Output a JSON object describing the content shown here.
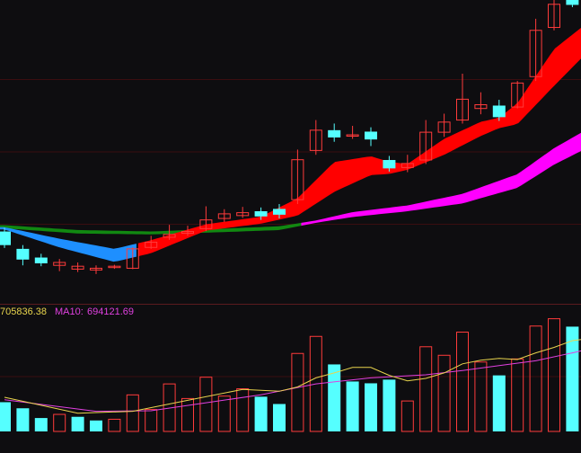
{
  "colors": {
    "background": "#0e0d10",
    "grid": "#3a0d10",
    "separator": "#5a1a1e",
    "up": "#ff3b3b",
    "down": "#55ffff",
    "ribbon_fast_up": "#ff0000",
    "ribbon_fast_down": "#1e8fff",
    "ribbon_slow_up": "#ff00ff",
    "ribbon_slow_down": "#118811",
    "ma5": "#e8d44d",
    "ma10": "#e040e0"
  },
  "volume_legend": {
    "ma5_text": "705836.38",
    "ma10_label": "MA10:",
    "ma10_value": "694121.69"
  },
  "chart_data": {
    "type": "candlestick",
    "title": "",
    "price_ylim": [
      0.0,
      1.0
    ],
    "volume_ylim": [
      0,
      1800000
    ],
    "candles": [
      {
        "o": 0.225,
        "c": 0.178,
        "h": 0.238,
        "l": 0.168
      },
      {
        "o": 0.165,
        "c": 0.128,
        "h": 0.178,
        "l": 0.108
      },
      {
        "o": 0.135,
        "c": 0.115,
        "h": 0.148,
        "l": 0.105
      },
      {
        "o": 0.108,
        "c": 0.118,
        "h": 0.13,
        "l": 0.088
      },
      {
        "o": 0.095,
        "c": 0.105,
        "h": 0.118,
        "l": 0.085
      },
      {
        "o": 0.092,
        "c": 0.098,
        "h": 0.108,
        "l": 0.078
      },
      {
        "o": 0.101,
        "c": 0.105,
        "h": 0.11,
        "l": 0.096
      },
      {
        "o": 0.098,
        "c": 0.165,
        "h": 0.17,
        "l": 0.095
      },
      {
        "o": 0.17,
        "c": 0.188,
        "h": 0.21,
        "l": 0.165
      },
      {
        "o": 0.205,
        "c": 0.215,
        "h": 0.248,
        "l": 0.196
      },
      {
        "o": 0.219,
        "c": 0.225,
        "h": 0.245,
        "l": 0.21
      },
      {
        "o": 0.235,
        "c": 0.265,
        "h": 0.312,
        "l": 0.226
      },
      {
        "o": 0.27,
        "c": 0.286,
        "h": 0.302,
        "l": 0.258
      },
      {
        "o": 0.28,
        "c": 0.29,
        "h": 0.31,
        "l": 0.272
      },
      {
        "o": 0.295,
        "c": 0.277,
        "h": 0.308,
        "l": 0.265
      },
      {
        "o": 0.303,
        "c": 0.283,
        "h": 0.32,
        "l": 0.27
      },
      {
        "o": 0.335,
        "c": 0.473,
        "h": 0.508,
        "l": 0.32
      },
      {
        "o": 0.505,
        "c": 0.575,
        "h": 0.61,
        "l": 0.49
      },
      {
        "o": 0.575,
        "c": 0.55,
        "h": 0.598,
        "l": 0.535
      },
      {
        "o": 0.555,
        "c": 0.559,
        "h": 0.59,
        "l": 0.545
      },
      {
        "o": 0.57,
        "c": 0.543,
        "h": 0.585,
        "l": 0.52
      },
      {
        "o": 0.472,
        "c": 0.443,
        "h": 0.486,
        "l": 0.432
      },
      {
        "o": 0.446,
        "c": 0.46,
        "h": 0.49,
        "l": 0.43
      },
      {
        "o": 0.472,
        "c": 0.568,
        "h": 0.61,
        "l": 0.458
      },
      {
        "o": 0.568,
        "c": 0.603,
        "h": 0.632,
        "l": 0.552
      },
      {
        "o": 0.61,
        "c": 0.682,
        "h": 0.77,
        "l": 0.598
      },
      {
        "o": 0.65,
        "c": 0.663,
        "h": 0.706,
        "l": 0.63
      },
      {
        "o": 0.66,
        "c": 0.62,
        "h": 0.68,
        "l": 0.607
      },
      {
        "o": 0.655,
        "c": 0.738,
        "h": 0.745,
        "l": 0.65
      },
      {
        "o": 0.76,
        "c": 0.92,
        "h": 0.96,
        "l": 0.745
      },
      {
        "o": 0.93,
        "c": 1.01,
        "h": 1.06,
        "l": 0.92
      },
      {
        "o": 1.03,
        "c": 1.008,
        "h": 1.06,
        "l": 1.0
      },
      {
        "o": 1.0,
        "c": 0.955,
        "h": 1.04,
        "l": 0.945
      }
    ],
    "ribbon_fast": [
      {
        "t": 0,
        "a": 0.24,
        "b": 0.232
      },
      {
        "t": 3,
        "a": 0.2,
        "b": 0.17
      },
      {
        "t": 6,
        "a": 0.165,
        "b": 0.12
      },
      {
        "t": 8,
        "a": 0.195,
        "b": 0.15
      },
      {
        "t": 11,
        "a": 0.25,
        "b": 0.228
      },
      {
        "t": 14,
        "a": 0.276,
        "b": 0.252
      },
      {
        "t": 16,
        "a": 0.34,
        "b": 0.28
      },
      {
        "t": 18,
        "a": 0.465,
        "b": 0.362
      },
      {
        "t": 20,
        "a": 0.485,
        "b": 0.42
      },
      {
        "t": 21,
        "a": 0.466,
        "b": 0.424
      },
      {
        "t": 22,
        "a": 0.458,
        "b": 0.438
      },
      {
        "t": 24,
        "a": 0.545,
        "b": 0.49
      },
      {
        "t": 26,
        "a": 0.604,
        "b": 0.555
      },
      {
        "t": 27,
        "a": 0.618,
        "b": 0.582
      },
      {
        "t": 28,
        "a": 0.668,
        "b": 0.596
      },
      {
        "t": 30,
        "a": 0.855,
        "b": 0.728
      },
      {
        "t": 32,
        "a": 0.955,
        "b": 0.856
      }
    ],
    "ribbon_slow": [
      {
        "t": 0,
        "a": 0.247,
        "b": 0.236
      },
      {
        "t": 4,
        "a": 0.23,
        "b": 0.218
      },
      {
        "t": 8,
        "a": 0.225,
        "b": 0.215
      },
      {
        "t": 12,
        "a": 0.235,
        "b": 0.223
      },
      {
        "t": 15,
        "a": 0.243,
        "b": 0.23
      },
      {
        "t": 17,
        "a": 0.263,
        "b": 0.255
      },
      {
        "t": 19,
        "a": 0.292,
        "b": 0.275
      },
      {
        "t": 22,
        "a": 0.315,
        "b": 0.295
      },
      {
        "t": 25,
        "a": 0.355,
        "b": 0.322
      },
      {
        "t": 28,
        "a": 0.423,
        "b": 0.376
      },
      {
        "t": 30,
        "a": 0.513,
        "b": 0.456
      },
      {
        "t": 32,
        "a": 0.585,
        "b": 0.52
      }
    ],
    "ribbon_cross_t": 16.2,
    "volume": [
      {
        "v": 480000,
        "d": 1
      },
      {
        "v": 380000,
        "d": 1
      },
      {
        "v": 220000,
        "d": 1
      },
      {
        "v": 280000,
        "d": 0
      },
      {
        "v": 240000,
        "d": 1
      },
      {
        "v": 180000,
        "d": 1
      },
      {
        "v": 200000,
        "d": 0
      },
      {
        "v": 600000,
        "d": 0
      },
      {
        "v": 360000,
        "d": 0
      },
      {
        "v": 780000,
        "d": 0
      },
      {
        "v": 540000,
        "d": 0
      },
      {
        "v": 890000,
        "d": 0
      },
      {
        "v": 580000,
        "d": 0
      },
      {
        "v": 700000,
        "d": 0
      },
      {
        "v": 570000,
        "d": 1
      },
      {
        "v": 450000,
        "d": 1
      },
      {
        "v": 1280000,
        "d": 0
      },
      {
        "v": 1560000,
        "d": 0
      },
      {
        "v": 1100000,
        "d": 1
      },
      {
        "v": 820000,
        "d": 1
      },
      {
        "v": 790000,
        "d": 1
      },
      {
        "v": 850000,
        "d": 1
      },
      {
        "v": 500000,
        "d": 0
      },
      {
        "v": 1390000,
        "d": 0
      },
      {
        "v": 1250000,
        "d": 0
      },
      {
        "v": 1630000,
        "d": 0
      },
      {
        "v": 1140000,
        "d": 0
      },
      {
        "v": 920000,
        "d": 1
      },
      {
        "v": 1190000,
        "d": 0
      },
      {
        "v": 1730000,
        "d": 0
      },
      {
        "v": 1850000,
        "d": 0
      },
      {
        "v": 1720000,
        "d": 1
      },
      {
        "v": 1640000,
        "d": 1
      }
    ],
    "vol_ma5": [
      [
        0,
        560000
      ],
      [
        4,
        300000
      ],
      [
        7,
        330000
      ],
      [
        10,
        510000
      ],
      [
        13,
        690000
      ],
      [
        15,
        660000
      ],
      [
        16,
        730000
      ],
      [
        17,
        880000
      ],
      [
        18,
        960000
      ],
      [
        19,
        1050000
      ],
      [
        20,
        1050000
      ],
      [
        21,
        920000
      ],
      [
        22,
        830000
      ],
      [
        23,
        870000
      ],
      [
        24,
        960000
      ],
      [
        25,
        1110000
      ],
      [
        26,
        1170000
      ],
      [
        27,
        1200000
      ],
      [
        28,
        1180000
      ],
      [
        29,
        1290000
      ],
      [
        30,
        1380000
      ],
      [
        31,
        1490000
      ],
      [
        32,
        1530000
      ]
    ],
    "vol_ma10": [
      [
        0,
        520000
      ],
      [
        5,
        330000
      ],
      [
        8,
        340000
      ],
      [
        11,
        470000
      ],
      [
        14,
        600000
      ],
      [
        17,
        780000
      ],
      [
        20,
        880000
      ],
      [
        23,
        930000
      ],
      [
        25,
        1000000
      ],
      [
        27,
        1080000
      ],
      [
        29,
        1160000
      ],
      [
        31,
        1290000
      ],
      [
        32,
        1360000
      ]
    ]
  }
}
